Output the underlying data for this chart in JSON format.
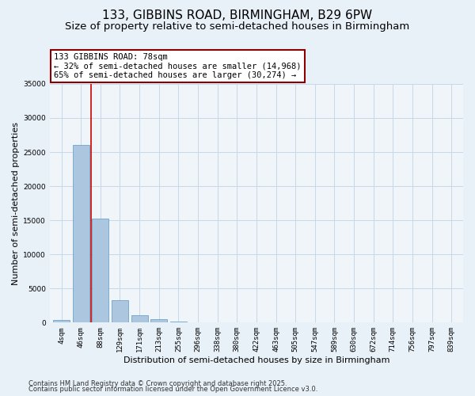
{
  "title": "133, GIBBINS ROAD, BIRMINGHAM, B29 6PW",
  "subtitle": "Size of property relative to semi-detached houses in Birmingham",
  "xlabel": "Distribution of semi-detached houses by size in Birmingham",
  "ylabel": "Number of semi-detached properties",
  "footer1": "Contains HM Land Registry data © Crown copyright and database right 2025.",
  "footer2": "Contains public sector information licensed under the Open Government Licence v3.0.",
  "categories": [
    "4sqm",
    "46sqm",
    "88sqm",
    "129sqm",
    "171sqm",
    "213sqm",
    "255sqm",
    "296sqm",
    "338sqm",
    "380sqm",
    "422sqm",
    "463sqm",
    "505sqm",
    "547sqm",
    "589sqm",
    "630sqm",
    "672sqm",
    "714sqm",
    "756sqm",
    "797sqm",
    "839sqm"
  ],
  "values": [
    350,
    26100,
    15200,
    3300,
    1050,
    480,
    200,
    80,
    0,
    0,
    0,
    0,
    0,
    0,
    0,
    0,
    0,
    0,
    0,
    0,
    0
  ],
  "bar_color": "#adc6e0",
  "bar_edge_color": "#5a9ac8",
  "highlight_color": "#cc0000",
  "annotation_text": "133 GIBBINS ROAD: 78sqm\n← 32% of semi-detached houses are smaller (14,968)\n65% of semi-detached houses are larger (30,274) →",
  "annotation_box_color": "white",
  "annotation_box_edge_color": "#8b0000",
  "ylim": [
    0,
    35000
  ],
  "yticks": [
    0,
    5000,
    10000,
    15000,
    20000,
    25000,
    30000,
    35000
  ],
  "bg_color": "#e8f0f8",
  "plot_bg_color": "#f0f5fa",
  "grid_color": "#c8d8e8",
  "vline_x": 1.5,
  "title_fontsize": 11,
  "subtitle_fontsize": 9.5,
  "axis_label_fontsize": 8,
  "tick_fontsize": 6.5,
  "annotation_fontsize": 7.5,
  "footer_fontsize": 6
}
